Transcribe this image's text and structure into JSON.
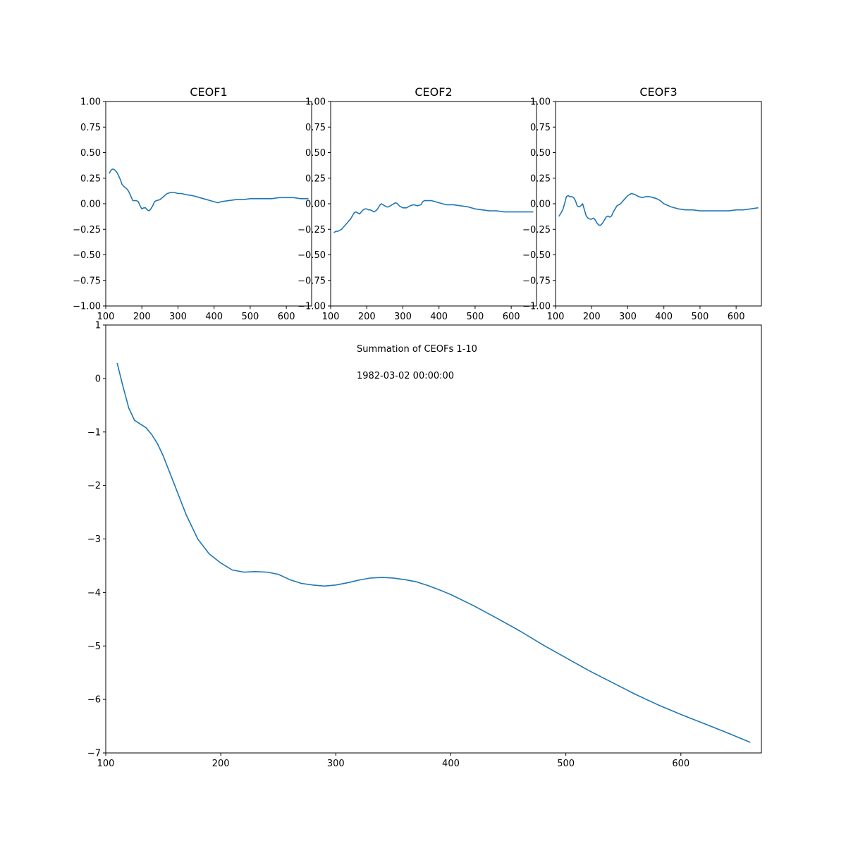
{
  "colors": {
    "series": "#1f77b4"
  },
  "chart_data": [
    {
      "type": "line",
      "title": "CEOF1",
      "xlim": [
        100,
        670
      ],
      "ylim": [
        -1.0,
        1.0
      ],
      "xticks": [
        "100",
        "200",
        "300",
        "400",
        "500",
        "600"
      ],
      "yticks": [
        "−1.00",
        "−0.75",
        "−0.50",
        "−0.25",
        "0.00",
        "0.25",
        "0.50",
        "0.75",
        "1.00"
      ],
      "grid": false,
      "x": [
        110,
        115,
        120,
        125,
        130,
        135,
        140,
        145,
        150,
        160,
        165,
        170,
        175,
        180,
        185,
        190,
        195,
        200,
        205,
        210,
        215,
        220,
        225,
        230,
        235,
        240,
        250,
        260,
        270,
        280,
        290,
        300,
        310,
        320,
        340,
        360,
        380,
        400,
        410,
        420,
        440,
        460,
        480,
        500,
        520,
        540,
        560,
        580,
        600,
        620,
        640,
        660
      ],
      "y": [
        0.3,
        0.33,
        0.34,
        0.33,
        0.31,
        0.28,
        0.24,
        0.19,
        0.17,
        0.14,
        0.11,
        0.07,
        0.03,
        0.03,
        0.03,
        0.02,
        -0.02,
        -0.05,
        -0.04,
        -0.04,
        -0.06,
        -0.07,
        -0.05,
        -0.02,
        0.02,
        0.03,
        0.04,
        0.07,
        0.1,
        0.11,
        0.11,
        0.1,
        0.1,
        0.09,
        0.08,
        0.06,
        0.04,
        0.02,
        0.01,
        0.02,
        0.03,
        0.04,
        0.04,
        0.05,
        0.05,
        0.05,
        0.05,
        0.06,
        0.06,
        0.06,
        0.05,
        0.05
      ]
    },
    {
      "type": "line",
      "title": "CEOF2",
      "xlim": [
        100,
        670
      ],
      "ylim": [
        -1.0,
        1.0
      ],
      "xticks": [
        "100",
        "200",
        "300",
        "400",
        "500",
        "600"
      ],
      "yticks": [
        "−1.00",
        "−0.75",
        "−0.50",
        "−0.25",
        "0.00",
        "0.25",
        "0.50",
        "0.75",
        "1.00"
      ],
      "grid": false,
      "x": [
        110,
        115,
        120,
        125,
        130,
        135,
        140,
        145,
        150,
        155,
        160,
        165,
        170,
        175,
        180,
        185,
        190,
        195,
        200,
        205,
        210,
        215,
        220,
        225,
        230,
        235,
        240,
        245,
        250,
        255,
        260,
        265,
        270,
        275,
        280,
        285,
        290,
        295,
        300,
        310,
        320,
        330,
        340,
        350,
        355,
        360,
        370,
        380,
        390,
        400,
        410,
        420,
        440,
        460,
        480,
        500,
        520,
        540,
        560,
        580,
        600,
        620,
        640,
        660
      ],
      "y": [
        -0.28,
        -0.27,
        -0.27,
        -0.26,
        -0.25,
        -0.23,
        -0.21,
        -0.19,
        -0.17,
        -0.15,
        -0.12,
        -0.09,
        -0.08,
        -0.09,
        -0.1,
        -0.08,
        -0.06,
        -0.05,
        -0.05,
        -0.06,
        -0.06,
        -0.07,
        -0.08,
        -0.07,
        -0.05,
        -0.02,
        0.0,
        -0.01,
        -0.02,
        -0.03,
        -0.03,
        -0.02,
        -0.01,
        0.0,
        0.01,
        0.0,
        -0.02,
        -0.03,
        -0.04,
        -0.04,
        -0.02,
        -0.01,
        -0.02,
        -0.01,
        0.02,
        0.03,
        0.03,
        0.03,
        0.02,
        0.01,
        0.0,
        -0.01,
        -0.01,
        -0.02,
        -0.03,
        -0.05,
        -0.06,
        -0.07,
        -0.07,
        -0.08,
        -0.08,
        -0.08,
        -0.08,
        -0.08
      ]
    },
    {
      "type": "line",
      "title": "CEOF3",
      "xlim": [
        100,
        670
      ],
      "ylim": [
        -1.0,
        1.0
      ],
      "xticks": [
        "100",
        "200",
        "300",
        "400",
        "500",
        "600"
      ],
      "yticks": [
        "−1.00",
        "−0.75",
        "−0.50",
        "−0.25",
        "0.00",
        "0.25",
        "0.50",
        "0.75",
        "1.00"
      ],
      "grid": false,
      "x": [
        110,
        115,
        120,
        125,
        130,
        135,
        140,
        145,
        150,
        155,
        160,
        165,
        170,
        175,
        180,
        185,
        190,
        195,
        200,
        205,
        210,
        215,
        220,
        225,
        230,
        235,
        240,
        245,
        250,
        255,
        260,
        265,
        270,
        280,
        290,
        300,
        310,
        320,
        330,
        340,
        350,
        360,
        370,
        380,
        390,
        400,
        420,
        440,
        460,
        480,
        500,
        520,
        540,
        560,
        580,
        600,
        620,
        640,
        660
      ],
      "y": [
        -0.12,
        -0.09,
        -0.06,
        0.0,
        0.07,
        0.08,
        0.07,
        0.07,
        0.06,
        0.03,
        -0.02,
        -0.03,
        -0.02,
        0.0,
        -0.06,
        -0.12,
        -0.14,
        -0.15,
        -0.15,
        -0.14,
        -0.16,
        -0.19,
        -0.21,
        -0.21,
        -0.19,
        -0.16,
        -0.13,
        -0.12,
        -0.13,
        -0.12,
        -0.08,
        -0.05,
        -0.02,
        0.0,
        0.04,
        0.08,
        0.1,
        0.09,
        0.07,
        0.06,
        0.07,
        0.07,
        0.06,
        0.05,
        0.03,
        0.0,
        -0.03,
        -0.05,
        -0.06,
        -0.06,
        -0.07,
        -0.07,
        -0.07,
        -0.07,
        -0.07,
        -0.06,
        -0.06,
        -0.05,
        -0.04
      ]
    },
    {
      "type": "line",
      "title": "",
      "xlim": [
        100,
        670
      ],
      "ylim": [
        -7,
        1
      ],
      "xticks": [
        "100",
        "200",
        "300",
        "400",
        "500",
        "600"
      ],
      "yticks": [
        "−7",
        "−6",
        "−5",
        "−4",
        "−3",
        "−2",
        "−1",
        "0",
        "1"
      ],
      "grid": false,
      "annotations": [
        "Summation of CEOFs 1-10",
        "1982-03-02 00:00:00"
      ],
      "x": [
        110,
        115,
        120,
        125,
        130,
        135,
        140,
        145,
        150,
        160,
        170,
        180,
        190,
        200,
        210,
        220,
        230,
        240,
        250,
        260,
        270,
        280,
        290,
        300,
        310,
        320,
        330,
        340,
        350,
        360,
        370,
        380,
        390,
        400,
        420,
        440,
        460,
        480,
        500,
        520,
        540,
        560,
        580,
        600,
        620,
        640,
        660
      ],
      "y": [
        0.28,
        -0.15,
        -0.55,
        -0.78,
        -0.85,
        -0.92,
        -1.05,
        -1.22,
        -1.45,
        -2.0,
        -2.55,
        -3.0,
        -3.28,
        -3.45,
        -3.58,
        -3.62,
        -3.61,
        -3.62,
        -3.66,
        -3.76,
        -3.83,
        -3.86,
        -3.88,
        -3.86,
        -3.82,
        -3.77,
        -3.73,
        -3.72,
        -3.73,
        -3.76,
        -3.8,
        -3.87,
        -3.95,
        -4.04,
        -4.25,
        -4.48,
        -4.72,
        -4.98,
        -5.22,
        -5.46,
        -5.68,
        -5.9,
        -6.1,
        -6.28,
        -6.45,
        -6.62,
        -6.8
      ]
    }
  ]
}
